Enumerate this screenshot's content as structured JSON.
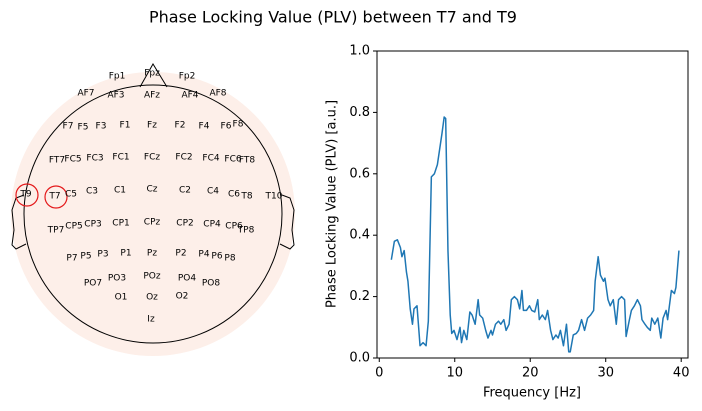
{
  "title": "Phase Locking Value (PLV) between T7 and T9",
  "chart_data": [
    {
      "type": "topomap",
      "electrodes": [
        "Fp1",
        "Fpz",
        "Fp2",
        "AF7",
        "AF3",
        "AFz",
        "AF4",
        "AF8",
        "F7",
        "F5",
        "F3",
        "F1",
        "Fz",
        "F2",
        "F4",
        "F6",
        "F8",
        "FT7",
        "FC5",
        "FC3",
        "FC1",
        "FCz",
        "FC2",
        "FC4",
        "FC6",
        "FT8",
        "T9",
        "T7",
        "C5",
        "C3",
        "C1",
        "Cz",
        "C2",
        "C4",
        "C6",
        "T8",
        "T10",
        "TP7",
        "CP5",
        "CP3",
        "CP1",
        "CPz",
        "CP2",
        "CP4",
        "CP6",
        "TP8",
        "P7",
        "P5",
        "P3",
        "P1",
        "Pz",
        "P2",
        "P4",
        "P6",
        "P8",
        "PO7",
        "PO3",
        "POz",
        "PO4",
        "PO8",
        "O1",
        "Oz",
        "O2",
        "Iz"
      ],
      "highlighted": [
        "T9",
        "T7"
      ],
      "highlight_color": "#e41a1c",
      "head_color": "#fdefe9"
    },
    {
      "type": "line",
      "xlabel": "Frequency [Hz]",
      "ylabel": "Phase Locking Value (PLV) [a.u.]",
      "color": "#1f77b4",
      "x": [
        1.6,
        2.0,
        2.4,
        2.8,
        3.0,
        3.3,
        3.6,
        3.8,
        4.1,
        4.4,
        4.6,
        5.0,
        5.4,
        5.8,
        6.2,
        6.5,
        6.9,
        7.3,
        7.7,
        8.0,
        8.3,
        8.6,
        8.8,
        9.1,
        9.4,
        9.6,
        9.9,
        10.3,
        10.7,
        10.9,
        11.2,
        11.6,
        12.0,
        12.3,
        12.7,
        13.1,
        13.3,
        13.7,
        14.1,
        14.4,
        14.8,
        15.0,
        15.4,
        15.8,
        16.1,
        16.5,
        16.8,
        17.2,
        17.5,
        17.9,
        18.3,
        18.6,
        18.9,
        19.1,
        19.5,
        19.9,
        20.2,
        20.6,
        21.0,
        21.2,
        21.6,
        22.0,
        22.3,
        22.7,
        23.0,
        23.4,
        23.7,
        24.0,
        24.4,
        24.8,
        25.1,
        25.3,
        25.7,
        26.1,
        26.4,
        26.8,
        27.2,
        27.6,
        28.0,
        28.4,
        28.6,
        29.0,
        29.3,
        29.7,
        29.9,
        30.3,
        30.6,
        31.0,
        31.4,
        31.7,
        32.1,
        32.5,
        32.7,
        33.1,
        33.4,
        33.8,
        34.2,
        34.6,
        34.8,
        35.2,
        35.5,
        35.9,
        36.1,
        36.5,
        36.9,
        37.3,
        37.6,
        38.0,
        38.2,
        38.7,
        39.1,
        39.3,
        39.7
      ],
      "values": [
        0.32,
        0.38,
        0.385,
        0.36,
        0.33,
        0.35,
        0.28,
        0.25,
        0.16,
        0.11,
        0.16,
        0.17,
        0.04,
        0.05,
        0.04,
        0.12,
        0.59,
        0.6,
        0.63,
        0.68,
        0.73,
        0.785,
        0.78,
        0.35,
        0.14,
        0.08,
        0.09,
        0.06,
        0.1,
        0.05,
        0.09,
        0.06,
        0.15,
        0.14,
        0.11,
        0.19,
        0.14,
        0.13,
        0.09,
        0.065,
        0.09,
        0.075,
        0.11,
        0.12,
        0.11,
        0.125,
        0.09,
        0.11,
        0.19,
        0.2,
        0.19,
        0.16,
        0.22,
        0.155,
        0.155,
        0.17,
        0.155,
        0.15,
        0.19,
        0.125,
        0.14,
        0.125,
        0.155,
        0.09,
        0.06,
        0.075,
        0.065,
        0.09,
        0.04,
        0.11,
        0.02,
        0.02,
        0.075,
        0.08,
        0.09,
        0.125,
        0.09,
        0.13,
        0.14,
        0.155,
        0.25,
        0.33,
        0.27,
        0.25,
        0.26,
        0.19,
        0.17,
        0.19,
        0.11,
        0.19,
        0.2,
        0.19,
        0.07,
        0.12,
        0.155,
        0.17,
        0.19,
        0.17,
        0.125,
        0.11,
        0.1,
        0.09,
        0.13,
        0.11,
        0.13,
        0.065,
        0.13,
        0.155,
        0.125,
        0.22,
        0.21,
        0.23,
        0.35
      ],
      "xlim": [
        -0.3,
        40.9
      ],
      "ylim": [
        0,
        1
      ],
      "xticks": [
        0,
        10,
        20,
        30,
        40
      ],
      "yticks": [
        {
          "value": 0,
          "label": "0.0"
        },
        {
          "value": 0.2,
          "label": "0.2"
        },
        {
          "value": 0.4,
          "label": "0.4"
        },
        {
          "value": 0.6,
          "label": "0.6"
        },
        {
          "value": 0.8,
          "label": "0.8"
        },
        {
          "value": 1,
          "label": "1.0"
        }
      ]
    }
  ]
}
